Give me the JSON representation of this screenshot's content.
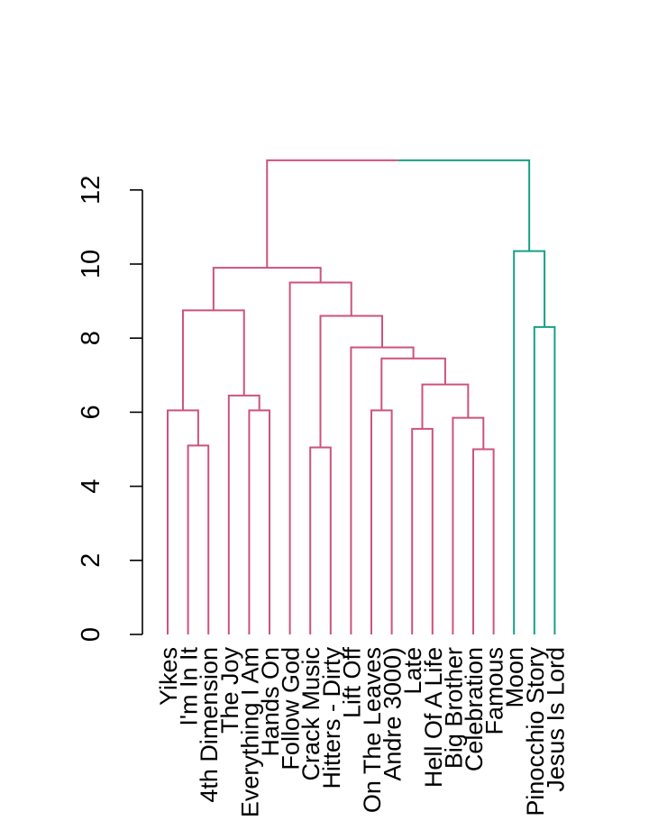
{
  "chart_data": {
    "type": "dendrogram",
    "title": "",
    "xlabel": "",
    "ylabel": "",
    "ylim": [
      0,
      12
    ],
    "y_ticks": [
      0,
      2,
      4,
      6,
      8,
      10,
      12
    ],
    "colors": {
      "cluster_1": "#cd537a",
      "cluster_2": "#16a085",
      "axis": "#000000"
    },
    "leaves": [
      "Yikes",
      "I'm In It",
      "4th Dimension",
      "The Joy",
      "Everything I Am",
      "Hands On",
      "Follow God",
      "Crack Music",
      "Hitters - Dirty",
      "Lift Off",
      "On The Leaves",
      "Andre 3000)",
      "Late",
      "Hell Of A Life",
      "Big Brother",
      "Celebration",
      "Famous",
      "Moon",
      "Pinocchio Story",
      "Jesus Is Lord"
    ],
    "merges": [
      {
        "left": [
          "leaf",
          1
        ],
        "right": [
          "leaf",
          2
        ],
        "height": 5.1,
        "cluster": "cluster_1"
      },
      {
        "left": [
          "leaf",
          0
        ],
        "right": [
          "node",
          0
        ],
        "height": 6.05,
        "cluster": "cluster_1"
      },
      {
        "left": [
          "leaf",
          4
        ],
        "right": [
          "leaf",
          5
        ],
        "height": 6.05,
        "cluster": "cluster_1"
      },
      {
        "left": [
          "leaf",
          3
        ],
        "right": [
          "node",
          2
        ],
        "height": 6.45,
        "cluster": "cluster_1"
      },
      {
        "left": [
          "node",
          1
        ],
        "right": [
          "node",
          3
        ],
        "height": 8.75,
        "cluster": "cluster_1"
      },
      {
        "left": [
          "leaf",
          7
        ],
        "right": [
          "leaf",
          8
        ],
        "height": 5.05,
        "cluster": "cluster_1"
      },
      {
        "left": [
          "leaf",
          10
        ],
        "right": [
          "leaf",
          11
        ],
        "height": 6.05,
        "cluster": "cluster_1"
      },
      {
        "left": [
          "leaf",
          12
        ],
        "right": [
          "leaf",
          13
        ],
        "height": 5.55,
        "cluster": "cluster_1"
      },
      {
        "left": [
          "leaf",
          15
        ],
        "right": [
          "leaf",
          16
        ],
        "height": 5.0,
        "cluster": "cluster_1"
      },
      {
        "left": [
          "leaf",
          14
        ],
        "right": [
          "node",
          8
        ],
        "height": 5.85,
        "cluster": "cluster_1"
      },
      {
        "left": [
          "node",
          7
        ],
        "right": [
          "node",
          9
        ],
        "height": 6.75,
        "cluster": "cluster_1"
      },
      {
        "left": [
          "node",
          6
        ],
        "right": [
          "node",
          10
        ],
        "height": 7.45,
        "cluster": "cluster_1"
      },
      {
        "left": [
          "leaf",
          9
        ],
        "right": [
          "node",
          11
        ],
        "height": 7.75,
        "cluster": "cluster_1"
      },
      {
        "left": [
          "node",
          5
        ],
        "right": [
          "node",
          12
        ],
        "height": 8.6,
        "cluster": "cluster_1"
      },
      {
        "left": [
          "leaf",
          6
        ],
        "right": [
          "node",
          13
        ],
        "height": 9.5,
        "cluster": "cluster_1"
      },
      {
        "left": [
          "node",
          4
        ],
        "right": [
          "node",
          14
        ],
        "height": 9.9,
        "cluster": "cluster_1"
      },
      {
        "left": [
          "leaf",
          18
        ],
        "right": [
          "leaf",
          19
        ],
        "height": 8.3,
        "cluster": "cluster_2"
      },
      {
        "left": [
          "leaf",
          17
        ],
        "right": [
          "node",
          16
        ],
        "height": 10.35,
        "cluster": "cluster_2"
      },
      {
        "left": [
          "node",
          15
        ],
        "right": [
          "node",
          17
        ],
        "height": 12.8,
        "cluster": "root"
      }
    ]
  }
}
